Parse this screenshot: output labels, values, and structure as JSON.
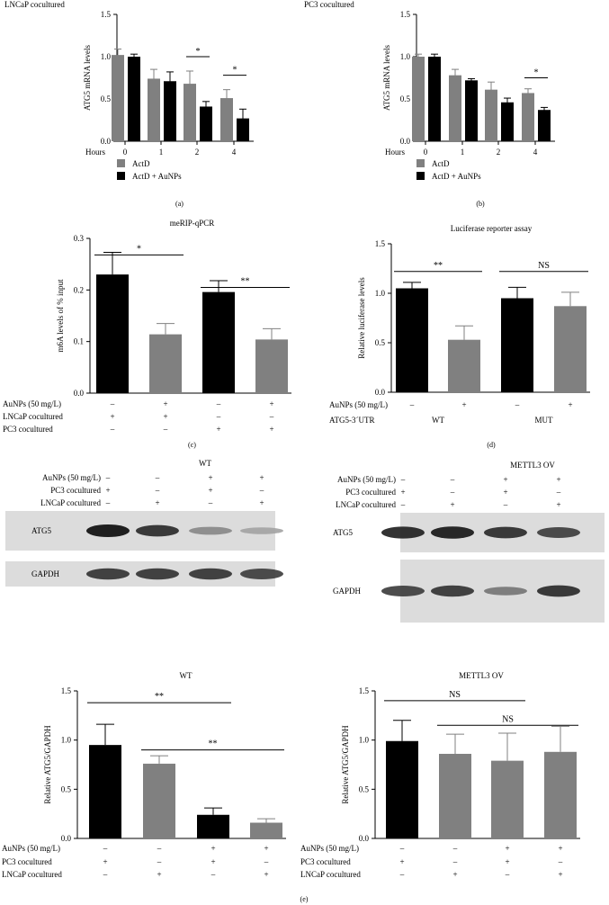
{
  "chart_data": [
    {
      "id": "a",
      "type": "bar",
      "title": "LNCaP cocultured",
      "panel_label": "(a)",
      "ylabel": "ATG5 mRNA levels",
      "xlabel": "Hours",
      "ylim": [
        0,
        1.5
      ],
      "yticks": [
        "0.0",
        "0.5",
        "1.0",
        "1.5"
      ],
      "categories": [
        "0",
        "1",
        "2",
        "4"
      ],
      "series": [
        {
          "name": "ActD",
          "color": "#808080",
          "values": [
            1.02,
            0.74,
            0.68,
            0.51
          ],
          "errors": [
            0.07,
            0.11,
            0.15,
            0.1
          ]
        },
        {
          "name": "ActD + AuNPs",
          "color": "#000000",
          "values": [
            1.0,
            0.71,
            0.41,
            0.27
          ],
          "errors": [
            0.03,
            0.11,
            0.06,
            0.11
          ]
        }
      ],
      "sig": [
        {
          "label": "*",
          "from": [
            2,
            0
          ],
          "to": [
            2,
            1
          ],
          "y": 1.0
        },
        {
          "label": "*",
          "from": [
            3,
            0
          ],
          "to": [
            3,
            1
          ],
          "y": 0.78
        }
      ]
    },
    {
      "id": "b",
      "type": "bar",
      "title": "PC3 cocultured",
      "panel_label": "(b)",
      "ylabel": "ATG5 mRNA levels",
      "xlabel": "Hours",
      "ylim": [
        0,
        1.5
      ],
      "yticks": [
        "0.0",
        "0.5",
        "1.0",
        "1.5"
      ],
      "categories": [
        "0",
        "1",
        "2",
        "4"
      ],
      "series": [
        {
          "name": "ActD",
          "color": "#808080",
          "values": [
            1.0,
            0.78,
            0.61,
            0.57
          ],
          "errors": [
            0.03,
            0.07,
            0.09,
            0.05
          ]
        },
        {
          "name": "ActD + AuNPs",
          "color": "#000000",
          "values": [
            1.0,
            0.72,
            0.46,
            0.37
          ],
          "errors": [
            0.03,
            0.02,
            0.05,
            0.03
          ]
        }
      ],
      "sig": [
        {
          "label": "*",
          "from": [
            3,
            0
          ],
          "to": [
            3,
            1
          ],
          "y": 0.75
        }
      ]
    },
    {
      "id": "c",
      "type": "bar",
      "title": "meRIP-qPCR",
      "panel_label": "(c)",
      "ylabel": "m6A levels of % input",
      "ylim": [
        0,
        0.3
      ],
      "yticks": [
        "0.0",
        "0.1",
        "0.2",
        "0.3"
      ],
      "values": [
        0.23,
        0.114,
        0.196,
        0.104
      ],
      "errors": [
        0.043,
        0.021,
        0.022,
        0.021
      ],
      "colors": [
        "#000000",
        "#808080",
        "#000000",
        "#808080"
      ],
      "sig": [
        {
          "label": "*",
          "from": 0,
          "to": 1,
          "y": 0.268
        },
        {
          "label": "**",
          "from": 2,
          "to": 3,
          "y": 0.205
        }
      ],
      "rows": [
        {
          "label": "AuNPs (50 mg/L)",
          "values": [
            "–",
            "+",
            "–",
            "+"
          ]
        },
        {
          "label": "LNCaP cocultured",
          "values": [
            "+",
            "+",
            "–",
            "–"
          ]
        },
        {
          "label": "PC3 cocultured",
          "values": [
            "–",
            "–",
            "+",
            "+"
          ]
        }
      ]
    },
    {
      "id": "d",
      "type": "bar",
      "title": "Luciferase reporter assay",
      "panel_label": "(d)",
      "ylabel": "Relative luciferase levels",
      "ylim": [
        0,
        1.5
      ],
      "yticks": [
        "0.0",
        "0.5",
        "1.0",
        "1.5"
      ],
      "values": [
        1.05,
        0.53,
        0.95,
        0.87
      ],
      "errors": [
        0.06,
        0.14,
        0.11,
        0.14
      ],
      "colors": [
        "#000000",
        "#808080",
        "#000000",
        "#808080"
      ],
      "sig": [
        {
          "label": "**",
          "from": 0,
          "to": 1,
          "y": 1.22
        },
        {
          "label": "NS",
          "from": 2,
          "to": 3,
          "y": 1.22
        }
      ],
      "rows": [
        {
          "label": "AuNPs (50 mg/L)",
          "values": [
            "–",
            "+",
            "–",
            "+"
          ]
        }
      ],
      "group_row": {
        "label": "ATG5-3´UTR",
        "groups": [
          "WT",
          "MUT"
        ]
      }
    },
    {
      "id": "e1",
      "type": "bar",
      "title": "WT",
      "ylabel": "Relative ATG5/GAPDH",
      "ylim": [
        0,
        1.5
      ],
      "yticks": [
        "0.0",
        "0.5",
        "1.0",
        "1.5"
      ],
      "values": [
        0.95,
        0.76,
        0.24,
        0.16
      ],
      "errors": [
        0.21,
        0.08,
        0.07,
        0.04
      ],
      "colors": [
        "#000000",
        "#808080",
        "#000000",
        "#808080"
      ],
      "sig": [
        {
          "label": "**",
          "from": 0,
          "to": 2,
          "y": 1.38
        },
        {
          "label": "**",
          "from": 1,
          "to": 3,
          "y": 0.9
        }
      ],
      "rows": [
        {
          "label": "AuNPs (50 mg/L)",
          "values": [
            "–",
            "–",
            "+",
            "+"
          ]
        },
        {
          "label": "PC3 cocultured",
          "values": [
            "+",
            "–",
            "+",
            "–"
          ]
        },
        {
          "label": "LNCaP cocultured",
          "values": [
            "–",
            "+",
            "–",
            "+"
          ]
        }
      ]
    },
    {
      "id": "e2",
      "type": "bar",
      "title": "METTL3 OV",
      "ylabel": "Relative ATG5/GAPDH",
      "ylim": [
        0,
        1.5
      ],
      "yticks": [
        "0.0",
        "0.5",
        "1.0",
        "1.5"
      ],
      "values": [
        0.99,
        0.86,
        0.79,
        0.88
      ],
      "errors": [
        0.21,
        0.2,
        0.28,
        0.26
      ],
      "colors": [
        "#000000",
        "#808080",
        "#808080",
        "#808080"
      ],
      "sig": [
        {
          "label": "NS",
          "from": 0,
          "to": 2,
          "y": 1.4
        },
        {
          "label": "NS",
          "from": 1,
          "to": 3,
          "y": 1.15
        }
      ],
      "rows": [
        {
          "label": "AuNPs (50 mg/L)",
          "values": [
            "–",
            "–",
            "+",
            "+"
          ]
        },
        {
          "label": "PC3 cocultured",
          "values": [
            "+",
            "–",
            "+",
            "–"
          ]
        },
        {
          "label": "LNCaP cocultured",
          "values": [
            "–",
            "+",
            "–",
            "+"
          ]
        }
      ]
    }
  ],
  "blots": [
    {
      "id": "blot-wt",
      "title": "WT",
      "rows": [
        {
          "label": "AuNPs (50 mg/L)",
          "values": [
            "–",
            "–",
            "+",
            "+"
          ]
        },
        {
          "label": "PC3 cocultured",
          "values": [
            "+",
            "–",
            "+",
            "–"
          ]
        },
        {
          "label": "LNCaP cocultured",
          "values": [
            "–",
            "+",
            "–",
            "+"
          ]
        }
      ],
      "bands": [
        {
          "label": "ATG5",
          "intensity": [
            1.0,
            0.85,
            0.35,
            0.2
          ]
        },
        {
          "label": "GAPDH",
          "intensity": [
            0.8,
            0.8,
            0.8,
            0.75
          ]
        }
      ]
    },
    {
      "id": "blot-mettl3",
      "title": "METTL3 OV",
      "rows": [
        {
          "label": "AuNPs (50 mg/L)",
          "values": [
            "–",
            "–",
            "+",
            "+"
          ]
        },
        {
          "label": "PC3 cocultured",
          "values": [
            "+",
            "–",
            "+",
            "–"
          ]
        },
        {
          "label": "LNCaP cocultured",
          "values": [
            "–",
            "+",
            "–",
            "+"
          ]
        }
      ],
      "bands": [
        {
          "label": "ATG5",
          "intensity": [
            0.9,
            0.95,
            0.85,
            0.75
          ]
        },
        {
          "label": "GAPDH",
          "intensity": [
            0.75,
            0.8,
            0.45,
            0.85
          ]
        }
      ]
    }
  ],
  "panel_label_e": "(e)"
}
